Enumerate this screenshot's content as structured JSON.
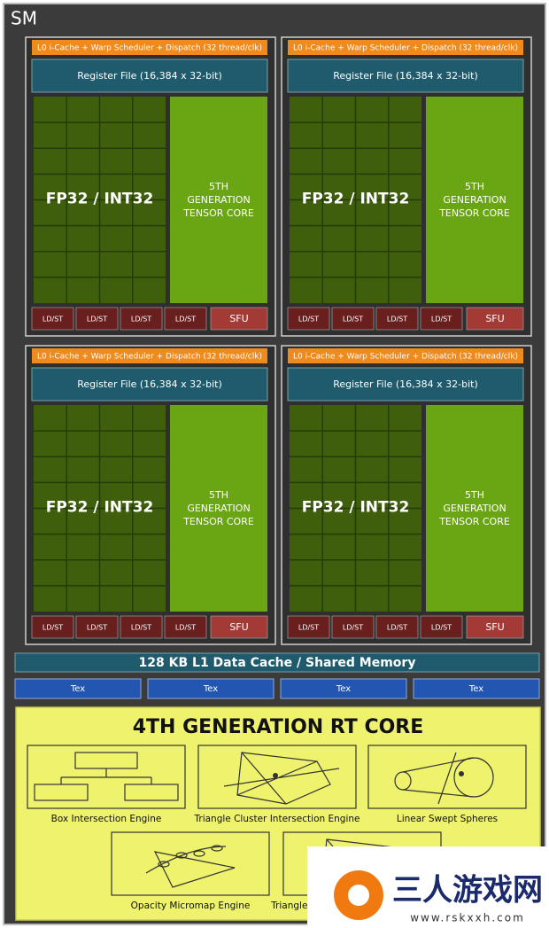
{
  "sm_label": "SM",
  "partitions": [
    {
      "scheduler": "L0 i-Cache + Warp Scheduler + Dispatch (32 thread/clk)",
      "register_file": "Register File (16,384 x 32-bit)",
      "cores": "FP32 / INT32",
      "tensor": [
        "5TH",
        "GENERATION",
        "TENSOR CORE"
      ],
      "units": [
        "LD/ST",
        "LD/ST",
        "LD/ST",
        "LD/ST",
        "SFU"
      ]
    },
    {
      "scheduler": "L0 i-Cache + Warp Scheduler + Dispatch (32 thread/clk)",
      "register_file": "Register File (16,384 x 32-bit)",
      "cores": "FP32 / INT32",
      "tensor": [
        "5TH",
        "GENERATION",
        "TENSOR CORE"
      ],
      "units": [
        "LD/ST",
        "LD/ST",
        "LD/ST",
        "LD/ST",
        "SFU"
      ]
    },
    {
      "scheduler": "L0 i-Cache + Warp Scheduler + Dispatch (32 thread/clk)",
      "register_file": "Register File (16,384 x 32-bit)",
      "cores": "FP32 / INT32",
      "tensor": [
        "5TH",
        "GENERATION",
        "TENSOR CORE"
      ],
      "units": [
        "LD/ST",
        "LD/ST",
        "LD/ST",
        "LD/ST",
        "SFU"
      ]
    },
    {
      "scheduler": "L0 i-Cache + Warp Scheduler + Dispatch (32 thread/clk)",
      "register_file": "Register File (16,384 x 32-bit)",
      "cores": "FP32 / INT32",
      "tensor": [
        "5TH",
        "GENERATION",
        "TENSOR CORE"
      ],
      "units": [
        "LD/ST",
        "LD/ST",
        "LD/ST",
        "LD/ST",
        "SFU"
      ]
    }
  ],
  "l1_cache": "128 KB L1 Data Cache / Shared Memory",
  "tex_units": [
    "Tex",
    "Tex",
    "Tex",
    "Tex"
  ],
  "rt_core": {
    "title": "4TH GENERATION RT CORE",
    "engines": [
      "Box Intersection Engine",
      "Triangle Cluster Intersection Engine",
      "Linear Swept Spheres",
      "Opacity Micromap Engine",
      "Triangle Cluster Decompression Engine"
    ]
  },
  "watermark": {
    "name": "三人游戏网",
    "url": "www.rskxxh.com"
  }
}
